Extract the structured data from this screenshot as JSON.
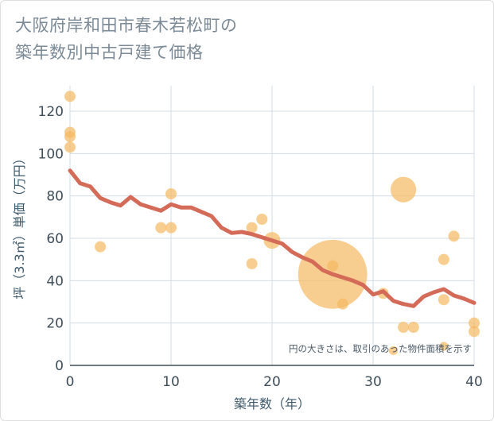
{
  "title_lines": [
    "大阪府岸和田市春木若松町の",
    "築年数別中古戸建て価格"
  ],
  "chart_data": {
    "type": "scatter",
    "title": "大阪府岸和田市春木若松町の築年数別中古戸建て価格",
    "xlabel": "築年数（年）",
    "ylabel": "坪（3.3㎡）単価（万円）",
    "xlim": [
      0,
      40
    ],
    "ylim": [
      0,
      132
    ],
    "xticks": [
      0,
      10,
      20,
      30,
      40
    ],
    "yticks": [
      0,
      20,
      40,
      60,
      80,
      100,
      120
    ],
    "grid": true,
    "note": "円の大きさは、取引のあった物件面積を示す",
    "bubble_color": "#f5b961",
    "line_color": "#d36b58",
    "bubbles": [
      {
        "x": 0,
        "y": 127,
        "size": 1
      },
      {
        "x": 0,
        "y": 110,
        "size": 1
      },
      {
        "x": 0,
        "y": 108,
        "size": 1
      },
      {
        "x": 0,
        "y": 103,
        "size": 1
      },
      {
        "x": 3,
        "y": 56,
        "size": 1
      },
      {
        "x": 9,
        "y": 65,
        "size": 1
      },
      {
        "x": 10,
        "y": 81,
        "size": 1
      },
      {
        "x": 10,
        "y": 65,
        "size": 1
      },
      {
        "x": 18,
        "y": 65,
        "size": 1
      },
      {
        "x": 18,
        "y": 48,
        "size": 1
      },
      {
        "x": 19,
        "y": 69,
        "size": 1
      },
      {
        "x": 20,
        "y": 59,
        "size": 1.5
      },
      {
        "x": 26,
        "y": 43,
        "size": 6.2
      },
      {
        "x": 26,
        "y": 47,
        "size": 1
      },
      {
        "x": 27,
        "y": 29,
        "size": 1
      },
      {
        "x": 31,
        "y": 34,
        "size": 1
      },
      {
        "x": 32,
        "y": 7,
        "size": 0.8
      },
      {
        "x": 33,
        "y": 83,
        "size": 2.3
      },
      {
        "x": 33,
        "y": 18,
        "size": 1
      },
      {
        "x": 34,
        "y": 18,
        "size": 1
      },
      {
        "x": 37,
        "y": 50,
        "size": 1
      },
      {
        "x": 37,
        "y": 31,
        "size": 1
      },
      {
        "x": 37,
        "y": 9,
        "size": 0.8
      },
      {
        "x": 38,
        "y": 61,
        "size": 1
      },
      {
        "x": 40,
        "y": 20,
        "size": 1
      },
      {
        "x": 40,
        "y": 16,
        "size": 1
      }
    ],
    "trend": {
      "x": [
        0,
        1,
        2,
        3,
        4,
        5,
        6,
        7,
        8,
        9,
        10,
        11,
        12,
        13,
        14,
        15,
        16,
        17,
        18,
        19,
        20,
        21,
        22,
        23,
        24,
        25,
        26,
        27,
        28,
        29,
        30,
        31,
        32,
        33,
        34,
        35,
        36,
        37,
        38,
        39,
        40
      ],
      "y": [
        92,
        86,
        84.5,
        79,
        77,
        75.5,
        79.5,
        76,
        74.5,
        73,
        76,
        74.5,
        74.5,
        72.5,
        70.5,
        65,
        62.5,
        63,
        62,
        60.5,
        59,
        57.5,
        53.5,
        51,
        49,
        45,
        43,
        41.5,
        40,
        38,
        33.5,
        35,
        30.5,
        29,
        28,
        32.5,
        34.5,
        36,
        33,
        31.5,
        29.5
      ]
    }
  }
}
